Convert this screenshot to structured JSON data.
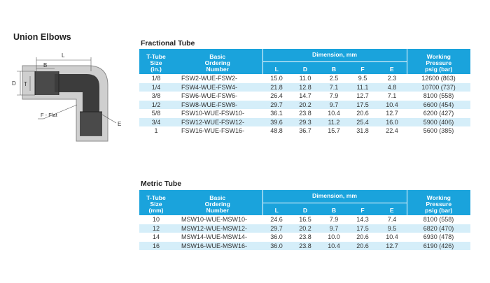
{
  "page_title": "Union Elbows",
  "diagram": {
    "labels": {
      "L": "L",
      "B": "B",
      "D": "D",
      "T": "T",
      "F": "F - Flat",
      "E": "E"
    }
  },
  "fractional": {
    "title": "Fractional Tube",
    "headers": {
      "size": [
        "T-Tube",
        "Size",
        "(in.)"
      ],
      "number": [
        "Basic",
        "Ordering",
        "Number"
      ],
      "dimension": "Dimension, mm",
      "dims": [
        "L",
        "D",
        "B",
        "F",
        "E"
      ],
      "pressure": [
        "Working",
        "Pressure",
        "psig (bar)"
      ]
    },
    "rows": [
      [
        "1/8",
        "FSW2-WUE-FSW2-",
        "15.0",
        "11.0",
        "2.5",
        "9.5",
        "2.3",
        "12600 (863)"
      ],
      [
        "1/4",
        "FSW4-WUE-FSW4-",
        "21.8",
        "12.8",
        "7.1",
        "11.1",
        "4.8",
        "10700 (737)"
      ],
      [
        "3/8",
        "FSW6-WUE-FSW6-",
        "26.4",
        "14.7",
        "7.9",
        "12.7",
        "7.1",
        "8100 (558)"
      ],
      [
        "1/2",
        "FSW8-WUE-FSW8-",
        "29.7",
        "20.2",
        "9.7",
        "17.5",
        "10.4",
        "6600 (454)"
      ],
      [
        "5/8",
        "FSW10-WUE-FSW10-",
        "36.1",
        "23.8",
        "10.4",
        "20.6",
        "12.7",
        "6200 (427)"
      ],
      [
        "3/4",
        "FSW12-WUE-FSW12-",
        "39.6",
        "29.3",
        "11.2",
        "25.4",
        "16.0",
        "5900 (406)"
      ],
      [
        "1",
        "FSW16-WUE-FSW16-",
        "48.8",
        "36.7",
        "15.7",
        "31.8",
        "22.4",
        "5600 (385)"
      ]
    ]
  },
  "metric": {
    "title": "Metric Tube",
    "headers": {
      "size": [
        "T-Tube",
        "Size",
        "(mm)"
      ],
      "number": [
        "Basic",
        "Ordering",
        "Number"
      ],
      "dimension": "Dimension, mm",
      "dims": [
        "L",
        "D",
        "B",
        "F",
        "E"
      ],
      "pressure": [
        "Working",
        "Pressure",
        "psig (bar)"
      ]
    },
    "rows": [
      [
        "10",
        "MSW10-WUE-MSW10-",
        "24.6",
        "16.5",
        "7.9",
        "14.3",
        "7.4",
        "8100 (558)"
      ],
      [
        "12",
        "MSW12-WUE-MSW12-",
        "29.7",
        "20.2",
        "9.7",
        "17.5",
        "9.5",
        "6820 (470)"
      ],
      [
        "14",
        "MSW14-WUE-MSW14-",
        "36.0",
        "23.8",
        "10.0",
        "20.6",
        "10.4",
        "6930 (478)"
      ],
      [
        "16",
        "MSW16-WUE-MSW16-",
        "36.0",
        "23.8",
        "10.4",
        "20.6",
        "12.7",
        "6190 (426)"
      ]
    ]
  },
  "colors": {
    "header_bg": "#1aa3dc",
    "row_alt": "#d5eef9"
  }
}
